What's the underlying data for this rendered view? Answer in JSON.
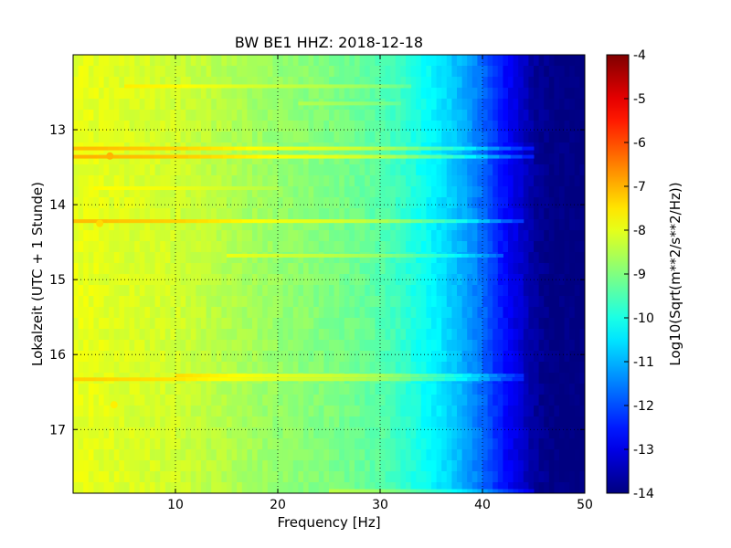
{
  "chart_data": {
    "type": "heatmap",
    "title": "BW BE1 HHZ: 2018-12-18",
    "xlabel": "Frequency [Hz]",
    "ylabel": "Lokalzeit (UTC + 1 Stunde)",
    "xlim": [
      0,
      50
    ],
    "ylim": [
      12.0,
      17.85
    ],
    "y_inverted": true,
    "x_ticks": [
      "10",
      "20",
      "30",
      "40",
      "50"
    ],
    "x_tick_values": [
      10,
      20,
      30,
      40,
      50
    ],
    "y_ticks": [
      "13",
      "14",
      "15",
      "16",
      "17"
    ],
    "y_tick_values": [
      13,
      14,
      15,
      16,
      17
    ],
    "grid": true,
    "colormap": "jet",
    "colorbar": {
      "label": "Log10(Sqrt(m**2/s**2/Hz))",
      "range": [
        -14,
        -4
      ],
      "ticks": [
        "-4",
        "-5",
        "-6",
        "-7",
        "-8",
        "-9",
        "-10",
        "-11",
        "-12",
        "-13",
        "-14"
      ],
      "tick_values": [
        -4,
        -5,
        -6,
        -7,
        -8,
        -9,
        -10,
        -11,
        -12,
        -13,
        -14
      ]
    },
    "spectrum_profile": {
      "frequency_hz": [
        0,
        2,
        5,
        10,
        15,
        20,
        25,
        28,
        30,
        32,
        34,
        36,
        38,
        40,
        42,
        44,
        45,
        47,
        50
      ],
      "log10_amplitude": [
        -8.0,
        -8.0,
        -8.1,
        -8.2,
        -8.5,
        -8.8,
        -9.0,
        -9.2,
        -9.4,
        -9.7,
        -10.1,
        -10.5,
        -11.0,
        -11.7,
        -12.6,
        -13.3,
        -13.7,
        -14.0,
        -14.0
      ]
    },
    "horizontal_bands": [
      {
        "hour": 12.42,
        "f_min": 5,
        "f_max": 33,
        "delta": 0.5
      },
      {
        "hour": 12.65,
        "f_min": 22,
        "f_max": 32,
        "delta": 0.4
      },
      {
        "hour": 13.25,
        "f_min": 0,
        "f_max": 45,
        "delta": 0.9
      },
      {
        "hour": 13.36,
        "f_min": 0,
        "f_max": 45,
        "delta": 1.0
      },
      {
        "hour": 13.78,
        "f_min": 2,
        "f_max": 20,
        "delta": 0.3
      },
      {
        "hour": 14.22,
        "f_min": 0,
        "f_max": 44,
        "delta": 0.9
      },
      {
        "hour": 14.68,
        "f_min": 15,
        "f_max": 42,
        "delta": 0.6
      },
      {
        "hour": 16.28,
        "f_min": 10,
        "f_max": 44,
        "delta": 0.8
      },
      {
        "hour": 16.33,
        "f_min": 0,
        "f_max": 44,
        "delta": 0.7
      },
      {
        "hour": 17.82,
        "f_min": 25,
        "f_max": 45,
        "delta": 0.6
      }
    ],
    "hot_spots": [
      {
        "freq": 3.6,
        "hour": 13.35,
        "value": -7.0
      },
      {
        "freq": 2.6,
        "hour": 14.25,
        "value": -7.4
      },
      {
        "freq": 4.0,
        "hour": 16.67,
        "value": -7.6
      }
    ]
  }
}
